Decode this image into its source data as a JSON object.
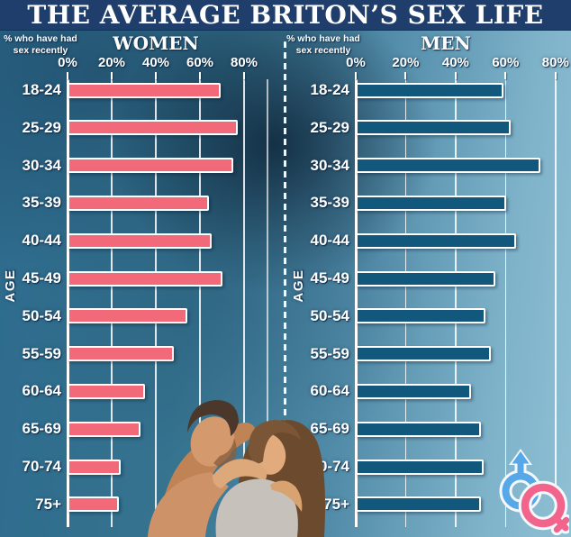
{
  "title": "THE AVERAGE BRITON’S SEX LIFE",
  "colors": {
    "banner_bg": "#1f3e6b",
    "women_bar": "#f2697a",
    "men_bar": "#11587c",
    "bar_border": "#ffffff",
    "gridline": "#ffffff",
    "male_symbol_blue": "#56a8e8",
    "female_symbol_pink": "#f2648c"
  },
  "chart_data": [
    {
      "type": "bar",
      "orientation": "horizontal",
      "title": "WOMEN",
      "axis_note": [
        "% who have had",
        "sex recently"
      ],
      "ylabel": "AGE",
      "xlabel": "",
      "xlim": [
        0,
        80
      ],
      "xticks": [
        "0%",
        "20%",
        "40%",
        "60%",
        "80%"
      ],
      "grid": true,
      "categories": [
        "18-24",
        "25-29",
        "30-34",
        "35-39",
        "40-44",
        "45-49",
        "50-54",
        "55-59",
        "60-64",
        "65-69",
        "70-74",
        "75+"
      ],
      "values": [
        68,
        76,
        74,
        63,
        64,
        69,
        53,
        47,
        34,
        32,
        23,
        22
      ]
    },
    {
      "type": "bar",
      "orientation": "horizontal",
      "title": "MEN",
      "axis_note": [
        "% who have had",
        "sex recently"
      ],
      "ylabel": "AGE",
      "xlabel": "",
      "xlim": [
        0,
        80
      ],
      "xticks": [
        "0%",
        "20%",
        "40%",
        "60%",
        "80%"
      ],
      "grid": true,
      "categories": [
        "18-24",
        "25-29",
        "30-34",
        "35-39",
        "40-44",
        "45-49",
        "50-54",
        "55-59",
        "60-64",
        "65-69",
        "70-74",
        "75+"
      ],
      "values": [
        58,
        61,
        73,
        59,
        63,
        55,
        51,
        53,
        45,
        49,
        50,
        49
      ]
    }
  ]
}
